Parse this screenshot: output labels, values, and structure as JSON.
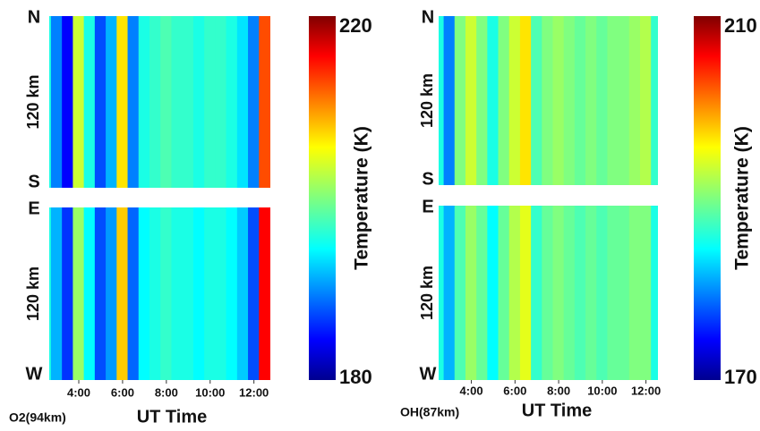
{
  "chart_data": [
    {
      "type": "heatmap",
      "site_label": "O2(94km)",
      "xlabel": "UT Time",
      "xlim": [
        2.65,
        12.75
      ],
      "xticks": [
        {
          "value": 4,
          "label": "4:00"
        },
        {
          "value": 6,
          "label": "6:00"
        },
        {
          "value": 8,
          "label": "8:00"
        },
        {
          "value": 10,
          "label": "10:00"
        },
        {
          "value": 12,
          "label": "12:00"
        }
      ],
      "colorbar": {
        "label": "Temperature (K)",
        "lim": [
          180,
          220
        ],
        "ticks": [
          180,
          220
        ]
      },
      "panels": [
        {
          "top_label": "N",
          "bottom_label": "S",
          "scale_label": "120 km",
          "x": [
            3.0,
            3.5,
            4.0,
            4.5,
            5.0,
            5.5,
            6.0,
            6.5,
            7.0,
            7.5,
            8.0,
            8.5,
            9.0,
            9.5,
            10.0,
            10.5,
            11.0,
            11.5,
            12.0,
            12.5
          ],
          "values": [
            190,
            185,
            203,
            196,
            188,
            192,
            206,
            190,
            196,
            197,
            198,
            197,
            197,
            196,
            197,
            197,
            196,
            194,
            190,
            212
          ]
        },
        {
          "top_label": "E",
          "bottom_label": "W",
          "scale_label": "120 km",
          "x": [
            3.0,
            3.5,
            4.0,
            4.5,
            5.0,
            5.5,
            6.0,
            6.5,
            7.0,
            7.5,
            8.0,
            8.5,
            9.0,
            9.5,
            10.0,
            10.5,
            11.0,
            11.5,
            12.0,
            12.5
          ],
          "values": [
            192,
            187,
            201,
            195,
            188,
            191,
            207,
            189,
            195,
            196,
            197,
            196,
            196,
            195,
            196,
            196,
            195,
            193,
            188,
            215
          ]
        }
      ]
    },
    {
      "type": "heatmap",
      "site_label": "OH(87km)",
      "xlabel": "UT Time",
      "xlim": [
        2.5,
        12.55
      ],
      "xticks": [
        {
          "value": 4,
          "label": "4:00"
        },
        {
          "value": 6,
          "label": "6:00"
        },
        {
          "value": 8,
          "label": "8:00"
        },
        {
          "value": 10,
          "label": "10:00"
        },
        {
          "value": 12,
          "label": "12:00"
        }
      ],
      "colorbar": {
        "label": "Temperature (K)",
        "lim": [
          170,
          210
        ],
        "ticks": [
          170,
          210
        ]
      },
      "panels": [
        {
          "top_label": "N",
          "bottom_label": "S",
          "scale_label": "120 km",
          "x": [
            3.0,
            3.5,
            4.0,
            4.5,
            5.0,
            5.5,
            6.0,
            6.5,
            7.0,
            7.5,
            8.0,
            8.5,
            9.0,
            9.5,
            10.0,
            10.5,
            11.0,
            11.5,
            12.0,
            12.5
          ],
          "values": [
            180,
            190,
            193,
            190,
            186,
            190,
            193,
            196,
            188,
            190,
            191,
            190,
            189,
            190,
            189,
            190,
            190,
            191,
            192,
            187
          ]
        },
        {
          "top_label": "E",
          "bottom_label": "W",
          "scale_label": "120 km",
          "x": [
            3.0,
            3.5,
            4.0,
            4.5,
            5.0,
            5.5,
            6.0,
            6.5,
            7.0,
            7.5,
            8.0,
            8.5,
            9.0,
            9.5,
            10.0,
            10.5,
            11.0,
            11.5,
            12.0,
            12.5
          ],
          "values": [
            182,
            188,
            191,
            189,
            185,
            189,
            192,
            194,
            187,
            189,
            190,
            189,
            188,
            189,
            188,
            189,
            189,
            190,
            190,
            186
          ]
        }
      ]
    }
  ]
}
